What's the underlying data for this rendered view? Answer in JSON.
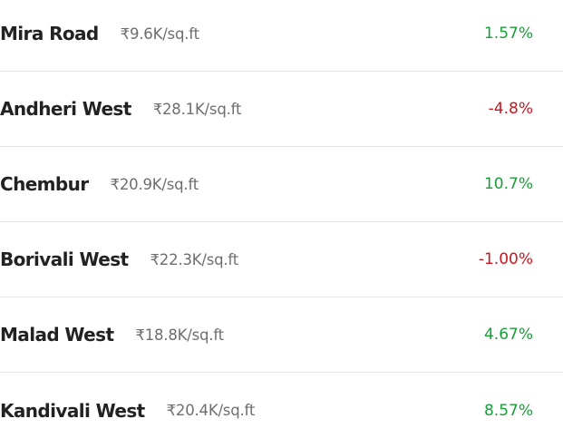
{
  "localities": [
    {
      "name": "Mira Road",
      "price": "₹9.6K/sq.ft",
      "change": "1.57%",
      "trend": "up"
    },
    {
      "name": "Andheri West",
      "price": "₹28.1K/sq.ft",
      "change": "-4.8%",
      "trend": "down"
    },
    {
      "name": "Chembur",
      "price": "₹20.9K/sq.ft",
      "change": "10.7%",
      "trend": "up"
    },
    {
      "name": "Borivali West",
      "price": "₹22.3K/sq.ft",
      "change": "-1.00%",
      "trend": "down"
    },
    {
      "name": "Malad West",
      "price": "₹18.8K/sq.ft",
      "change": "4.67%",
      "trend": "up"
    },
    {
      "name": "Kandivali West",
      "price": "₹20.4K/sq.ft",
      "change": "8.57%",
      "trend": "up"
    }
  ],
  "colors": {
    "positive": "#1a9e3a",
    "negative": "#d0141b",
    "name": "#222222",
    "price": "#6e6e6e",
    "divider": "#e6e6e6"
  }
}
